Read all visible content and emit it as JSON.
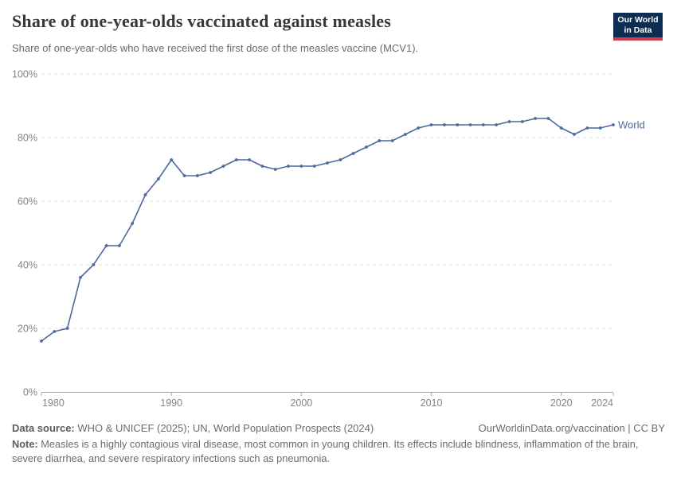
{
  "chart_data": {
    "type": "line",
    "title": "Share of one-year-olds vaccinated against measles",
    "subtitle": "Share of one-year-olds who have received the first dose of the measles vaccine (MCV1).",
    "xlabel": "",
    "ylabel": "",
    "xlim": [
      1980,
      2024
    ],
    "ylim": [
      0,
      100
    ],
    "x_ticks": [
      1980,
      1990,
      2000,
      2010,
      2020,
      2024
    ],
    "y_ticks": [
      0,
      20,
      40,
      60,
      80,
      100
    ],
    "y_tick_suffix": "%",
    "grid": "horizontal-dashed",
    "legend_position": "line-end-label",
    "series": [
      {
        "name": "World",
        "color": "#4c6a9c",
        "x": [
          1980,
          1981,
          1982,
          1983,
          1984,
          1985,
          1986,
          1987,
          1988,
          1989,
          1990,
          1991,
          1992,
          1993,
          1994,
          1995,
          1996,
          1997,
          1998,
          1999,
          2000,
          2001,
          2002,
          2003,
          2004,
          2005,
          2006,
          2007,
          2008,
          2009,
          2010,
          2011,
          2012,
          2013,
          2014,
          2015,
          2016,
          2017,
          2018,
          2019,
          2020,
          2021,
          2022,
          2023,
          2024
        ],
        "values": [
          16,
          19,
          20,
          36,
          40,
          46,
          46,
          53,
          62,
          67,
          73,
          68,
          68,
          69,
          71,
          73,
          73,
          71,
          70,
          71,
          71,
          71,
          72,
          73,
          75,
          77,
          79,
          79,
          81,
          83,
          84,
          84,
          84,
          84,
          84,
          84,
          85,
          85,
          86,
          86,
          83,
          81,
          83,
          83,
          84
        ]
      }
    ]
  },
  "logo": {
    "line1": "Our World",
    "line2": "in Data",
    "bg_color": "#0d2d52",
    "stripe_color": "#d23b4b"
  },
  "footer": {
    "source_label": "Data source:",
    "source_text": " WHO & UNICEF (2025); UN, World Population Prospects (2024)",
    "attribution": "OurWorldinData.org/vaccination | CC BY",
    "note_label": "Note:",
    "note_text": " Measles is a highly contagious viral disease, most common in young children. Its effects include blindness, inflammation of the brain, severe diarrhea, and severe respiratory infections such as pneumonia."
  },
  "colors": {
    "line": "#4c6a9c",
    "gridline": "#dcdcdc",
    "axis": "#a8a8a8",
    "tick_label": "#858585",
    "title": "#383838",
    "subtitle": "#6b6b6b",
    "footer_text": "#6c6c6c"
  }
}
